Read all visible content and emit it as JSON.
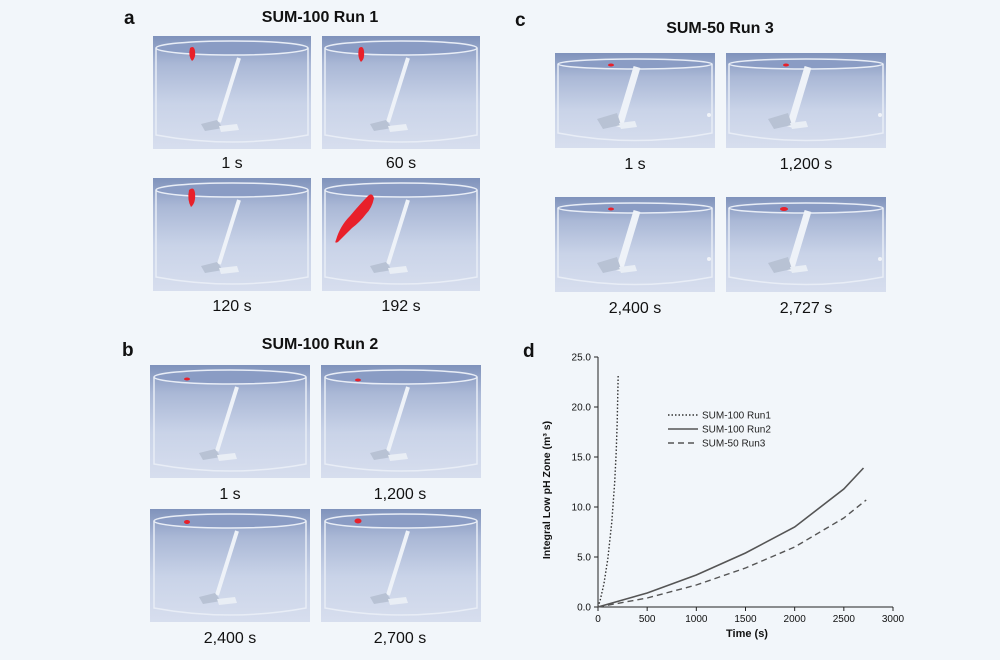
{
  "panels": {
    "a": {
      "label": "a",
      "title": "SUM-100 Run 1",
      "captions": [
        "1 s",
        "60 s",
        "120 s",
        "192 s"
      ]
    },
    "b": {
      "label": "b",
      "title": "SUM-100 Run 2",
      "captions": [
        "1 s",
        "1,200 s",
        "2,400 s",
        "2,700 s"
      ]
    },
    "c": {
      "label": "c",
      "title": "SUM-50 Run 3",
      "captions": [
        "1 s",
        "1,200 s",
        "2,400 s",
        "2,727 s"
      ]
    },
    "d": {
      "label": "d"
    }
  },
  "colors": {
    "plume": "#e8202a",
    "tank": "#c9d3e8"
  },
  "chart_data": {
    "type": "line",
    "xlabel": "Time (s)",
    "ylabel": "Integral Low pH Zone (m³ s)",
    "xlim": [
      0,
      3000
    ],
    "ylim": [
      0,
      25
    ],
    "xticks": [
      "0",
      "500",
      "1000",
      "1500",
      "2000",
      "2500",
      "3000"
    ],
    "yticks": [
      "0.0",
      "5.0",
      "10.0",
      "15.0",
      "20.0",
      "25.0"
    ],
    "legend_position": "center-right",
    "series": [
      {
        "name": "SUM-100 Run1",
        "style": "dotted",
        "x": [
          0,
          20,
          60,
          100,
          140,
          170,
          185,
          195,
          205
        ],
        "y": [
          0,
          0.6,
          2.3,
          4.8,
          8.5,
          12.5,
          15.5,
          18.5,
          23.3
        ]
      },
      {
        "name": "SUM-100 Run2",
        "style": "solid",
        "x": [
          0,
          500,
          1000,
          1500,
          2000,
          2500,
          2700
        ],
        "y": [
          0,
          1.4,
          3.2,
          5.4,
          8.0,
          11.8,
          13.9
        ]
      },
      {
        "name": "SUM-50 Run3",
        "style": "dashed",
        "x": [
          0,
          500,
          1000,
          1500,
          2000,
          2500,
          2727
        ],
        "y": [
          0,
          0.9,
          2.2,
          3.9,
          6.0,
          8.9,
          10.7
        ]
      }
    ]
  }
}
